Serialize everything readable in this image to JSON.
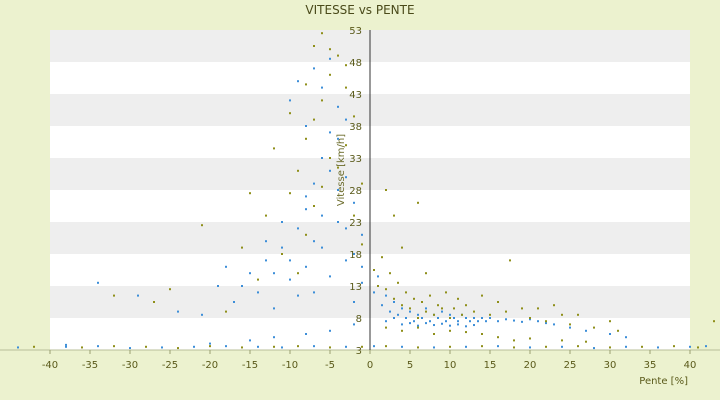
{
  "chart_data": {
    "type": "scatter",
    "title": "VITESSE vs PENTE",
    "xlabel": "Pente [%]",
    "ylabel": "Vitesse [km/h]",
    "xlim": [
      -40,
      40
    ],
    "ylim": [
      3,
      53
    ],
    "x_ticks": [
      "-40",
      "-35",
      "-30",
      "-25",
      "-20",
      "-15",
      "-10",
      "-5",
      "0",
      "5",
      "10",
      "15",
      "20",
      "25",
      "30",
      "35",
      "40"
    ],
    "y_ticks": [
      "3",
      "8",
      "13",
      "18",
      "23",
      "28",
      "33",
      "38",
      "43",
      "48",
      "53"
    ],
    "legend": "none",
    "grid": "horizontal alternating bands",
    "colors": {
      "background": "#ecf2cf",
      "band_light": "#ffffff",
      "band_dark": "#eeeeee",
      "series_a": "#3c8ed8",
      "series_b": "#8f8f1a"
    },
    "series": [
      {
        "color": "#3c8ed8",
        "points": [
          [
            -44,
            3.4
          ],
          [
            -38,
            3.5
          ],
          [
            -34,
            3.6
          ],
          [
            -30,
            3.3
          ],
          [
            -26,
            3.4
          ],
          [
            -22,
            3.5
          ],
          [
            -18,
            3.6
          ],
          [
            -14,
            3.5
          ],
          [
            -11,
            3.4
          ],
          [
            -7,
            3.6
          ],
          [
            -3,
            3.5
          ],
          [
            0.5,
            3.6
          ],
          [
            4,
            3.5
          ],
          [
            8,
            3.4
          ],
          [
            12,
            3.5
          ],
          [
            16,
            3.6
          ],
          [
            20,
            3.4
          ],
          [
            24,
            3.5
          ],
          [
            28,
            3.3
          ],
          [
            32,
            3.5
          ],
          [
            36,
            3.4
          ],
          [
            40,
            3.5
          ],
          [
            42,
            3.6
          ],
          [
            -34,
            13.5
          ],
          [
            -29,
            11.5
          ],
          [
            -24,
            9.0
          ],
          [
            -21,
            8.5
          ],
          [
            -19,
            13.0
          ],
          [
            -17,
            10.5
          ],
          [
            -15,
            15.0
          ],
          [
            -14,
            12.0
          ],
          [
            -13,
            17.0
          ],
          [
            -12,
            9.5
          ],
          [
            -11,
            19.0
          ],
          [
            -10,
            14.0
          ],
          [
            -9,
            22.0
          ],
          [
            -9,
            11.5
          ],
          [
            -8,
            25.0
          ],
          [
            -8,
            16.0
          ],
          [
            -7,
            29.0
          ],
          [
            -7,
            12.0
          ],
          [
            -6,
            33.0
          ],
          [
            -6,
            19.0
          ],
          [
            -5,
            37.0
          ],
          [
            -5,
            14.5
          ],
          [
            -4,
            41.0
          ],
          [
            -4,
            23.0
          ],
          [
            -3,
            30.0
          ],
          [
            -3,
            17.0
          ],
          [
            -2,
            26.0
          ],
          [
            -2,
            10.5
          ],
          [
            -1,
            21.0
          ],
          [
            -1,
            13.5
          ],
          [
            -10,
            42.0
          ],
          [
            -9,
            45.0
          ],
          [
            -8,
            38.0
          ],
          [
            -7,
            47.0
          ],
          [
            -6,
            44.0
          ],
          [
            -5,
            48.5
          ],
          [
            -4,
            36.0
          ],
          [
            -3,
            39.0
          ],
          [
            0.5,
            12.0
          ],
          [
            1,
            14.5
          ],
          [
            1.5,
            10.0
          ],
          [
            2,
            11.5
          ],
          [
            2.5,
            9.0
          ],
          [
            3,
            10.5
          ],
          [
            3.5,
            8.5
          ],
          [
            4,
            9.5
          ],
          [
            4.5,
            8.0
          ],
          [
            5,
            9.0
          ],
          [
            5.5,
            7.5
          ],
          [
            6,
            8.5
          ],
          [
            6.5,
            8.0
          ],
          [
            7,
            9.5
          ],
          [
            7.5,
            7.5
          ],
          [
            8,
            8.5
          ],
          [
            8.5,
            8.0
          ],
          [
            9,
            9.0
          ],
          [
            9.5,
            7.5
          ],
          [
            10,
            8.5
          ],
          [
            10.5,
            8.0
          ],
          [
            11,
            7.5
          ],
          [
            11.5,
            8.5
          ],
          [
            12,
            8.0
          ],
          [
            12.5,
            7.5
          ],
          [
            13,
            8.0
          ],
          [
            13.5,
            7.5
          ],
          [
            14,
            8.0
          ],
          [
            14.5,
            7.5
          ],
          [
            15,
            8.0
          ],
          [
            16,
            7.5
          ],
          [
            17,
            7.8
          ],
          [
            18,
            7.6
          ],
          [
            19,
            7.4
          ],
          [
            20,
            7.8
          ],
          [
            21,
            7.5
          ],
          [
            22,
            7.2
          ],
          [
            23,
            7.0
          ],
          [
            25,
            6.5
          ],
          [
            27,
            6.0
          ],
          [
            30,
            5.5
          ],
          [
            32,
            5.0
          ],
          [
            2,
            7.5
          ],
          [
            3,
            8.0
          ],
          [
            4,
            7.0
          ],
          [
            5,
            7.2
          ],
          [
            6,
            6.8
          ],
          [
            7,
            7.2
          ],
          [
            8,
            6.9
          ],
          [
            9,
            7.1
          ],
          [
            10,
            6.8
          ],
          [
            11,
            7.0
          ],
          [
            12,
            6.7
          ],
          [
            13,
            6.9
          ],
          [
            -38,
            3.8
          ],
          [
            -20,
            4.0
          ],
          [
            -15,
            4.5
          ],
          [
            -12,
            5.0
          ],
          [
            -8,
            5.5
          ],
          [
            -5,
            6.0
          ],
          [
            -2,
            7.0
          ],
          [
            -6,
            24.0
          ],
          [
            -7,
            20.0
          ],
          [
            -8,
            27.0
          ],
          [
            -5,
            31.0
          ],
          [
            -4,
            28.0
          ],
          [
            -3,
            22.0
          ],
          [
            -2,
            18.0
          ],
          [
            -1,
            16.0
          ],
          [
            -10,
            17.0
          ],
          [
            -11,
            23.0
          ],
          [
            -12,
            15.0
          ],
          [
            -13,
            20.0
          ],
          [
            -16,
            13.0
          ],
          [
            -18,
            16.0
          ]
        ]
      },
      {
        "color": "#8f8f1a",
        "points": [
          [
            -42,
            3.5
          ],
          [
            -36,
            3.4
          ],
          [
            -32,
            3.6
          ],
          [
            -28,
            3.5
          ],
          [
            -24,
            3.3
          ],
          [
            -20,
            3.6
          ],
          [
            -16,
            3.4
          ],
          [
            -12,
            3.5
          ],
          [
            -9,
            3.6
          ],
          [
            -5,
            3.4
          ],
          [
            -1,
            3.5
          ],
          [
            2,
            3.6
          ],
          [
            6,
            3.4
          ],
          [
            10,
            3.5
          ],
          [
            14,
            3.6
          ],
          [
            18,
            3.4
          ],
          [
            22,
            3.5
          ],
          [
            26,
            3.6
          ],
          [
            30,
            3.4
          ],
          [
            34,
            3.5
          ],
          [
            38,
            3.6
          ],
          [
            41,
            3.4
          ],
          [
            -32,
            11.5
          ],
          [
            -27,
            10.5
          ],
          [
            -25,
            12.5
          ],
          [
            -21,
            22.5
          ],
          [
            -18,
            9.0
          ],
          [
            -16,
            19.0
          ],
          [
            -15,
            27.5
          ],
          [
            -14,
            14.0
          ],
          [
            -13,
            24.0
          ],
          [
            -12,
            34.5
          ],
          [
            -11,
            18.0
          ],
          [
            -10,
            27.5
          ],
          [
            -10,
            40.0
          ],
          [
            -9,
            31.0
          ],
          [
            -9,
            15.0
          ],
          [
            -8,
            36.0
          ],
          [
            -8,
            21.0
          ],
          [
            -7,
            39.0
          ],
          [
            -7,
            25.5
          ],
          [
            -6,
            42.0
          ],
          [
            -6,
            28.5
          ],
          [
            -5,
            46.0
          ],
          [
            -5,
            33.0
          ],
          [
            -4,
            49.0
          ],
          [
            -4,
            31.5
          ],
          [
            -3,
            44.0
          ],
          [
            -3,
            35.0
          ],
          [
            -2,
            39.5
          ],
          [
            -2,
            24.0
          ],
          [
            -1,
            29.0
          ],
          [
            -1,
            19.5
          ],
          [
            -6,
            52.5
          ],
          [
            -5,
            50.0
          ],
          [
            -7,
            50.5
          ],
          [
            -8,
            44.5
          ],
          [
            -3,
            47.5
          ],
          [
            0.5,
            15.5
          ],
          [
            1,
            13.0
          ],
          [
            1.5,
            17.5
          ],
          [
            2,
            12.5
          ],
          [
            2.5,
            15.0
          ],
          [
            3,
            11.0
          ],
          [
            3.5,
            13.5
          ],
          [
            4,
            10.0
          ],
          [
            4.5,
            12.0
          ],
          [
            5,
            9.5
          ],
          [
            5.5,
            11.0
          ],
          [
            6,
            8.0
          ],
          [
            6.5,
            10.5
          ],
          [
            7,
            9.0
          ],
          [
            7.5,
            11.5
          ],
          [
            8,
            8.5
          ],
          [
            8.5,
            10.0
          ],
          [
            9,
            9.5
          ],
          [
            9.5,
            12.0
          ],
          [
            10,
            8.0
          ],
          [
            10.5,
            9.5
          ],
          [
            11,
            11.0
          ],
          [
            11.5,
            8.5
          ],
          [
            12,
            10.0
          ],
          [
            13,
            9.0
          ],
          [
            14,
            11.5
          ],
          [
            15,
            8.5
          ],
          [
            16,
            10.5
          ],
          [
            17,
            9.0
          ],
          [
            17.5,
            17.0
          ],
          [
            19,
            9.5
          ],
          [
            20,
            8.0
          ],
          [
            21,
            9.5
          ],
          [
            22,
            7.5
          ],
          [
            23,
            10.0
          ],
          [
            24,
            8.5
          ],
          [
            25,
            7.0
          ],
          [
            26,
            8.5
          ],
          [
            28,
            6.5
          ],
          [
            30,
            7.5
          ],
          [
            31,
            6.0
          ],
          [
            2,
            6.5
          ],
          [
            4,
            6.0
          ],
          [
            6,
            6.5
          ],
          [
            8,
            5.5
          ],
          [
            10,
            6.0
          ],
          [
            12,
            5.8
          ],
          [
            14,
            5.5
          ],
          [
            16,
            5.0
          ],
          [
            18,
            4.5
          ],
          [
            20,
            4.8
          ],
          [
            24,
            4.5
          ],
          [
            27,
            4.3
          ],
          [
            3,
            24.0
          ],
          [
            6,
            26.0
          ],
          [
            4,
            19.0
          ],
          [
            7,
            15.0
          ],
          [
            2,
            28.0
          ],
          [
            43,
            7.5
          ]
        ]
      }
    ]
  }
}
